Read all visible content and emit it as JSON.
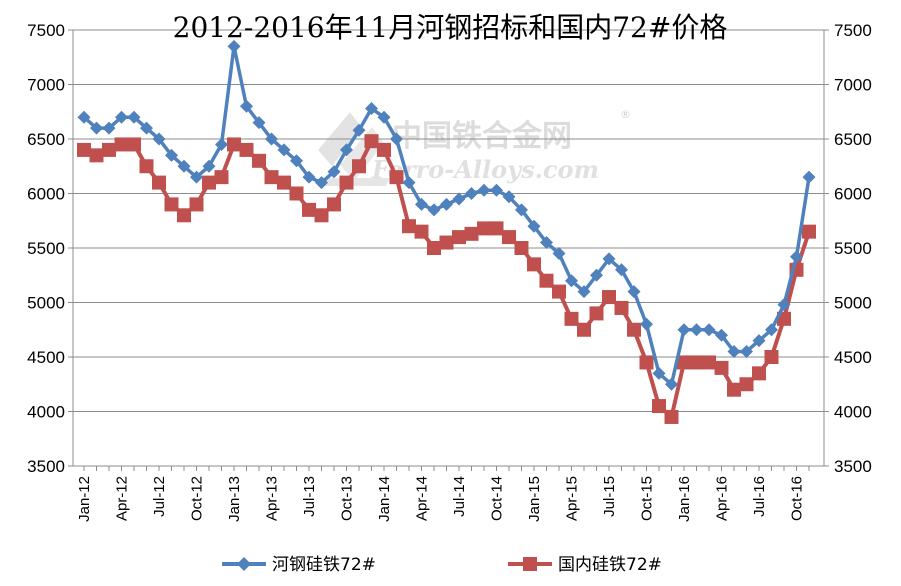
{
  "chart_data": {
    "type": "line",
    "title": "2012-2016年11月河钢招标和国内72#价格",
    "x_tick_labels": [
      "Jan-12",
      "Apr-12",
      "Jul-12",
      "Oct-12",
      "Jan-13",
      "Apr-13",
      "Jul-13",
      "Oct-13",
      "Jan-14",
      "Apr-14",
      "Jul-14",
      "Oct-14",
      "Jan-15",
      "Apr-15",
      "Jul-15",
      "Oct-15",
      "Jan-16",
      "Apr-16",
      "Jul-16",
      "Oct-16"
    ],
    "y_ticks": [
      "3500",
      "4000",
      "4500",
      "5000",
      "5500",
      "6000",
      "6500",
      "7000",
      "7500"
    ],
    "ylim": [
      3500,
      7500
    ],
    "grid": "horizontal",
    "legend_position": "bottom",
    "x_start": "Jan-12",
    "x_end": "Nov-16",
    "series": [
      {
        "name": "河钢硅铁72#",
        "color": "#4f81bd",
        "marker": "diamond",
        "values": [
          6700,
          6600,
          6600,
          6700,
          6700,
          6600,
          6500,
          6350,
          6250,
          6150,
          6250,
          6450,
          7350,
          6800,
          6650,
          6500,
          6400,
          6300,
          6150,
          6100,
          6200,
          6400,
          6580,
          6780,
          6700,
          6500,
          6100,
          5900,
          5850,
          5900,
          5950,
          6000,
          6030,
          6030,
          5970,
          5850,
          5700,
          5550,
          5450,
          5200,
          5100,
          5250,
          5400,
          5300,
          5100,
          4800,
          4350,
          4250,
          4750,
          4750,
          4750,
          4700,
          4550,
          4550,
          4650,
          4750,
          4980,
          5420,
          6150
        ]
      },
      {
        "name": "国内硅铁72#",
        "color": "#c0504d",
        "marker": "square",
        "values": [
          6400,
          6350,
          6400,
          6450,
          6450,
          6250,
          6100,
          5900,
          5800,
          5900,
          6100,
          6150,
          6450,
          6400,
          6300,
          6150,
          6100,
          6000,
          5850,
          5800,
          5900,
          6100,
          6250,
          6480,
          6400,
          6150,
          5700,
          5650,
          5500,
          5550,
          5600,
          5630,
          5680,
          5680,
          5600,
          5500,
          5350,
          5200,
          5100,
          4850,
          4750,
          4900,
          5050,
          4950,
          4750,
          4450,
          4050,
          3950,
          4450,
          4450,
          4450,
          4400,
          4200,
          4250,
          4350,
          4500,
          4850,
          5300,
          5650
        ]
      }
    ]
  },
  "watermark": {
    "text_cn": "中国铁合金网",
    "text_en": "Ferro-Alloys.com",
    "registered": "®"
  }
}
